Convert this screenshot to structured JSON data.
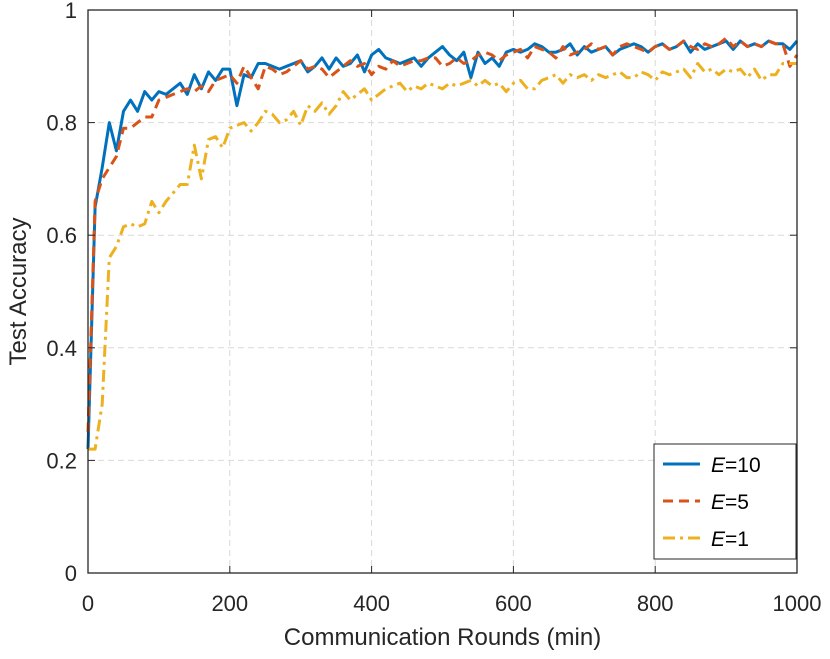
{
  "chart_data": {
    "type": "line",
    "title": "",
    "xlabel": "Communication Rounds (min)",
    "ylabel": "Test Accuracy",
    "xlim": [
      0,
      1000
    ],
    "ylim": [
      0,
      1
    ],
    "xticks": [
      0,
      200,
      400,
      600,
      800,
      1000
    ],
    "yticks": [
      0,
      0.2,
      0.4,
      0.6,
      0.8,
      1
    ],
    "xtick_labels": [
      "0",
      "200",
      "400",
      "600",
      "800",
      "1000"
    ],
    "ytick_labels": [
      "0",
      "0.2",
      "0.4",
      "0.6",
      "0.8",
      "1"
    ],
    "grid": true,
    "legend_position": "bottom-right",
    "series": [
      {
        "name": "E=10",
        "legend_italic": "E",
        "legend_suffix": "=10",
        "color": "#0072BD",
        "dash": "solid",
        "x": [
          0,
          10,
          20,
          30,
          40,
          50,
          60,
          70,
          80,
          90,
          100,
          110,
          120,
          130,
          140,
          150,
          160,
          170,
          180,
          190,
          200,
          210,
          220,
          230,
          240,
          250,
          260,
          270,
          280,
          290,
          300,
          310,
          320,
          330,
          340,
          350,
          360,
          370,
          380,
          390,
          400,
          410,
          420,
          430,
          440,
          450,
          460,
          470,
          480,
          490,
          500,
          510,
          520,
          530,
          540,
          550,
          560,
          570,
          580,
          590,
          600,
          610,
          620,
          630,
          640,
          650,
          660,
          670,
          680,
          690,
          700,
          710,
          720,
          730,
          740,
          750,
          760,
          770,
          780,
          790,
          800,
          810,
          820,
          830,
          840,
          850,
          860,
          870,
          880,
          890,
          900,
          910,
          920,
          930,
          940,
          950,
          960,
          970,
          980,
          990,
          1000
        ],
        "y": [
          0.22,
          0.65,
          0.72,
          0.8,
          0.75,
          0.82,
          0.84,
          0.82,
          0.855,
          0.84,
          0.855,
          0.85,
          0.86,
          0.87,
          0.85,
          0.885,
          0.86,
          0.89,
          0.875,
          0.895,
          0.895,
          0.83,
          0.885,
          0.88,
          0.905,
          0.905,
          0.9,
          0.895,
          0.9,
          0.905,
          0.91,
          0.89,
          0.9,
          0.915,
          0.895,
          0.915,
          0.9,
          0.905,
          0.92,
          0.89,
          0.92,
          0.93,
          0.915,
          0.91,
          0.905,
          0.91,
          0.915,
          0.9,
          0.915,
          0.925,
          0.935,
          0.92,
          0.91,
          0.925,
          0.88,
          0.925,
          0.905,
          0.915,
          0.9,
          0.925,
          0.93,
          0.925,
          0.93,
          0.94,
          0.935,
          0.925,
          0.925,
          0.93,
          0.94,
          0.92,
          0.935,
          0.925,
          0.93,
          0.935,
          0.92,
          0.93,
          0.935,
          0.94,
          0.935,
          0.925,
          0.935,
          0.94,
          0.93,
          0.935,
          0.945,
          0.925,
          0.94,
          0.93,
          0.935,
          0.94,
          0.945,
          0.93,
          0.945,
          0.935,
          0.94,
          0.935,
          0.945,
          0.94,
          0.94,
          0.93,
          0.945
        ]
      },
      {
        "name": "E=5",
        "legend_italic": "E",
        "legend_suffix": "=5",
        "color": "#D95319",
        "dash": "10,6",
        "x": [
          0,
          10,
          20,
          30,
          40,
          50,
          60,
          70,
          80,
          90,
          100,
          110,
          120,
          130,
          140,
          150,
          160,
          170,
          180,
          190,
          200,
          210,
          220,
          230,
          240,
          250,
          260,
          270,
          280,
          290,
          300,
          310,
          320,
          330,
          340,
          350,
          360,
          370,
          380,
          390,
          400,
          410,
          420,
          430,
          440,
          450,
          460,
          470,
          480,
          490,
          500,
          510,
          520,
          530,
          540,
          550,
          560,
          570,
          580,
          590,
          600,
          610,
          620,
          630,
          640,
          650,
          660,
          670,
          680,
          690,
          700,
          710,
          720,
          730,
          740,
          750,
          760,
          770,
          780,
          790,
          800,
          810,
          820,
          830,
          840,
          850,
          860,
          870,
          880,
          890,
          900,
          910,
          920,
          930,
          940,
          950,
          960,
          970,
          980,
          990,
          1000
        ],
        "y": [
          0.25,
          0.66,
          0.7,
          0.72,
          0.74,
          0.79,
          0.79,
          0.8,
          0.81,
          0.81,
          0.84,
          0.845,
          0.85,
          0.855,
          0.86,
          0.855,
          0.865,
          0.855,
          0.875,
          0.88,
          0.885,
          0.87,
          0.9,
          0.88,
          0.86,
          0.9,
          0.895,
          0.885,
          0.89,
          0.9,
          0.91,
          0.895,
          0.9,
          0.895,
          0.88,
          0.89,
          0.9,
          0.91,
          0.9,
          0.905,
          0.885,
          0.9,
          0.895,
          0.91,
          0.9,
          0.905,
          0.91,
          0.91,
          0.915,
          0.915,
          0.9,
          0.905,
          0.915,
          0.905,
          0.91,
          0.92,
          0.925,
          0.92,
          0.91,
          0.92,
          0.925,
          0.93,
          0.915,
          0.935,
          0.93,
          0.925,
          0.915,
          0.935,
          0.92,
          0.925,
          0.93,
          0.94,
          0.93,
          0.935,
          0.92,
          0.935,
          0.94,
          0.935,
          0.93,
          0.925,
          0.935,
          0.94,
          0.93,
          0.935,
          0.945,
          0.935,
          0.93,
          0.94,
          0.935,
          0.94,
          0.95,
          0.935,
          0.945,
          0.935,
          0.94,
          0.935,
          0.945,
          0.94,
          0.94,
          0.9,
          0.92
        ]
      },
      {
        "name": "E=1",
        "legend_italic": "E",
        "legend_suffix": "=1",
        "color": "#EDB120",
        "dash": "12,5,3,5",
        "x": [
          0,
          10,
          20,
          30,
          40,
          50,
          60,
          70,
          80,
          90,
          100,
          110,
          120,
          130,
          140,
          150,
          160,
          170,
          180,
          190,
          200,
          210,
          220,
          230,
          240,
          250,
          260,
          270,
          280,
          290,
          300,
          310,
          320,
          330,
          340,
          350,
          360,
          370,
          380,
          390,
          400,
          410,
          420,
          430,
          440,
          450,
          460,
          470,
          480,
          490,
          500,
          510,
          520,
          530,
          540,
          550,
          560,
          570,
          580,
          590,
          600,
          610,
          620,
          630,
          640,
          650,
          660,
          670,
          680,
          690,
          700,
          710,
          720,
          730,
          740,
          750,
          760,
          770,
          780,
          790,
          800,
          810,
          820,
          830,
          840,
          850,
          860,
          870,
          880,
          890,
          900,
          910,
          920,
          930,
          940,
          950,
          960,
          970,
          980,
          990,
          1000
        ],
        "y": [
          0.22,
          0.22,
          0.3,
          0.56,
          0.58,
          0.615,
          0.62,
          0.615,
          0.62,
          0.66,
          0.64,
          0.66,
          0.675,
          0.69,
          0.69,
          0.76,
          0.7,
          0.77,
          0.775,
          0.755,
          0.79,
          0.795,
          0.8,
          0.785,
          0.8,
          0.82,
          0.815,
          0.8,
          0.805,
          0.82,
          0.795,
          0.83,
          0.82,
          0.835,
          0.815,
          0.83,
          0.855,
          0.84,
          0.85,
          0.86,
          0.84,
          0.85,
          0.86,
          0.865,
          0.87,
          0.855,
          0.865,
          0.86,
          0.87,
          0.865,
          0.86,
          0.87,
          0.865,
          0.87,
          0.875,
          0.865,
          0.875,
          0.865,
          0.87,
          0.855,
          0.87,
          0.875,
          0.86,
          0.86,
          0.875,
          0.88,
          0.885,
          0.87,
          0.885,
          0.88,
          0.885,
          0.875,
          0.885,
          0.88,
          0.885,
          0.89,
          0.88,
          0.88,
          0.89,
          0.885,
          0.875,
          0.89,
          0.885,
          0.89,
          0.895,
          0.88,
          0.905,
          0.89,
          0.895,
          0.885,
          0.895,
          0.89,
          0.895,
          0.88,
          0.895,
          0.875,
          0.885,
          0.885,
          0.905,
          0.905,
          0.905
        ]
      }
    ]
  }
}
